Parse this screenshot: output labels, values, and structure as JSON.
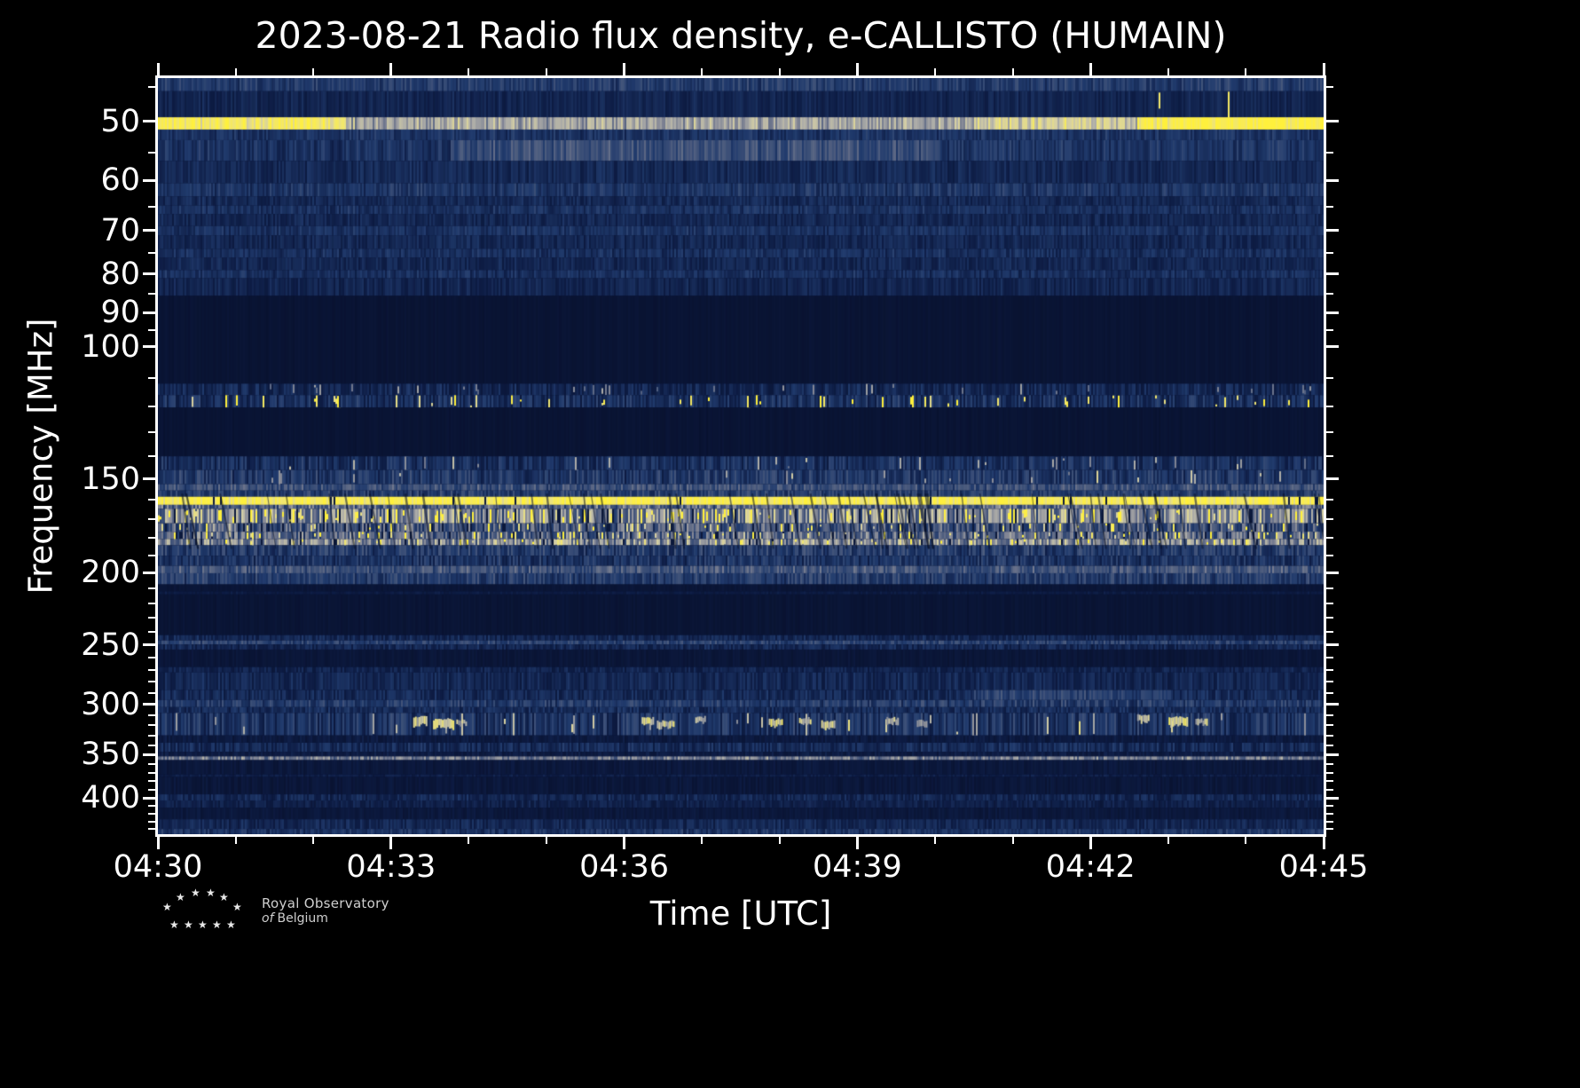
{
  "title": "2023-08-21 Radio flux density, e-CALLISTO (HUMAIN)",
  "xlabel": "Time [UTC]",
  "ylabel": "Frequency [MHz]",
  "date": "2023-08-21",
  "instrument": "e-CALLISTO",
  "station": "HUMAIN",
  "logo": {
    "line1": "Royal Observatory",
    "line2_italic": "of",
    "line2": "Belgium"
  },
  "colors": {
    "background": "#000000",
    "foreground": "#ffffff",
    "bright_rfi": "#ffee3c",
    "quiet_blue": "#0d1c44"
  },
  "chart_data": {
    "type": "heatmap",
    "title": "2023-08-21 Radio flux density, e-CALLISTO (HUMAIN)",
    "xlabel": "Time [UTC]",
    "ylabel": "Frequency [MHz]",
    "x_range_minutes": [
      0,
      15
    ],
    "x_major_ticks": [
      {
        "label": "04:30",
        "min": 0
      },
      {
        "label": "04:33",
        "min": 3
      },
      {
        "label": "04:36",
        "min": 6
      },
      {
        "label": "04:39",
        "min": 9
      },
      {
        "label": "04:42",
        "min": 12
      },
      {
        "label": "04:45",
        "min": 15
      }
    ],
    "x_minor_ticks_min": [
      1,
      2,
      4,
      5,
      7,
      8,
      10,
      11,
      13,
      14
    ],
    "y_scale": "log",
    "y_inverted": "low frequency at top",
    "y_range_mhz": [
      43.8,
      447
    ],
    "y_major_ticks": [
      50,
      60,
      70,
      80,
      90,
      100,
      150,
      200,
      250,
      300,
      350,
      400
    ],
    "y_minor_ticks": [
      45,
      55,
      65,
      75,
      85,
      95,
      110,
      120,
      130,
      140,
      160,
      170,
      180,
      190,
      210,
      220,
      230,
      240,
      260,
      270,
      280,
      290,
      310,
      320,
      330,
      340,
      360,
      370,
      380,
      390,
      410,
      420,
      430,
      440
    ],
    "colormap_stops": [
      [
        0.0,
        [
          7,
          15,
          42
        ]
      ],
      [
        0.15,
        [
          13,
          28,
          68
        ]
      ],
      [
        0.3,
        [
          32,
          58,
          108
        ]
      ],
      [
        0.45,
        [
          82,
          96,
          128
        ]
      ],
      [
        0.55,
        [
          128,
          132,
          148
        ]
      ],
      [
        0.65,
        [
          172,
          172,
          168
        ]
      ],
      [
        0.75,
        [
          212,
          206,
          165
        ]
      ],
      [
        0.85,
        [
          238,
          228,
          120
        ]
      ],
      [
        1.0,
        [
          255,
          240,
          60
        ]
      ]
    ],
    "bands": [
      {
        "f_lo": 43.8,
        "f_hi": 45.6,
        "mean": 0.3,
        "var": 0.08,
        "label": "top edge noise strip"
      },
      {
        "f_lo": 45.6,
        "f_hi": 49.4,
        "mean": 0.19,
        "var": 0.05,
        "speckle_prob": 0.004,
        "speckle_val": 0.8
      },
      {
        "f_lo": 49.4,
        "f_hi": 51.3,
        "mean": 0.8,
        "var": 0.1,
        "label": "bright ~50 MHz carrier",
        "tmods": [
          [
            0,
            0.16,
            1.15
          ],
          [
            0.16,
            0.7,
            0.78
          ],
          [
            0.7,
            0.84,
            0.92
          ],
          [
            0.84,
            1,
            1.22
          ]
        ]
      },
      {
        "f_lo": 51.3,
        "f_hi": 53.0,
        "mean": 0.26,
        "var": 0.07
      },
      {
        "f_lo": 53.0,
        "f_hi": 56.5,
        "mean": 0.3,
        "var": 0.08,
        "tmods": [
          [
            0,
            0.25,
            0.85
          ],
          [
            0.25,
            0.67,
            1.25
          ],
          [
            0.67,
            1,
            0.9
          ]
        ]
      },
      {
        "f_lo": 56.5,
        "f_hi": 60.5,
        "mean": 0.21,
        "var": 0.06
      },
      {
        "f_lo": 60.5,
        "f_hi": 63.0,
        "mean": 0.27,
        "var": 0.08,
        "label": "~62 MHz line"
      },
      {
        "f_lo": 63.0,
        "f_hi": 64.8,
        "mean": 0.21,
        "var": 0.06
      },
      {
        "f_lo": 64.8,
        "f_hi": 66.5,
        "mean": 0.25,
        "var": 0.07
      },
      {
        "f_lo": 66.5,
        "f_hi": 69.0,
        "mean": 0.2,
        "var": 0.06
      },
      {
        "f_lo": 69.0,
        "f_hi": 71.0,
        "mean": 0.25,
        "var": 0.07
      },
      {
        "f_lo": 71.0,
        "f_hi": 74.0,
        "mean": 0.2,
        "var": 0.06
      },
      {
        "f_lo": 74.0,
        "f_hi": 76.0,
        "mean": 0.24,
        "var": 0.07
      },
      {
        "f_lo": 76.0,
        "f_hi": 79.0,
        "mean": 0.2,
        "var": 0.06
      },
      {
        "f_lo": 79.0,
        "f_hi": 81.0,
        "mean": 0.24,
        "var": 0.07
      },
      {
        "f_lo": 81.0,
        "f_hi": 85.5,
        "mean": 0.19,
        "var": 0.06
      },
      {
        "f_lo": 85.5,
        "f_hi": 112.0,
        "mean": 0.055,
        "var": 0.015,
        "label": "quiet / blanked band"
      },
      {
        "f_lo": 112.0,
        "f_hi": 116.0,
        "mean": 0.2,
        "var": 0.09,
        "speckle_prob": 0.04,
        "speckle_val": 0.55
      },
      {
        "f_lo": 116.0,
        "f_hi": 120.5,
        "mean": 0.24,
        "var": 0.11,
        "speckle_prob": 0.08,
        "speckle_val": 0.95,
        "label": "airband speckles ~118 MHz"
      },
      {
        "f_lo": 120.5,
        "f_hi": 140.0,
        "mean": 0.055,
        "var": 0.015
      },
      {
        "f_lo": 140.0,
        "f_hi": 146.0,
        "mean": 0.24,
        "var": 0.1,
        "speckle_prob": 0.03,
        "speckle_val": 0.6
      },
      {
        "f_lo": 146.0,
        "f_hi": 152.5,
        "mean": 0.28,
        "var": 0.11,
        "speckle_prob": 0.03,
        "speckle_val": 0.65
      },
      {
        "f_lo": 152.5,
        "f_hi": 155.5,
        "mean": 0.38,
        "var": 0.1
      },
      {
        "f_lo": 155.5,
        "f_hi": 158.5,
        "mean": 0.3,
        "var": 0.1
      },
      {
        "f_lo": 158.5,
        "f_hi": 162.5,
        "mean": 0.93,
        "var": 0.06,
        "gap_prob": 0.03,
        "label": "saturated bright band ~160 MHz"
      },
      {
        "f_lo": 162.5,
        "f_hi": 164.5,
        "mean": 0.45,
        "var": 0.15
      },
      {
        "f_lo": 164.5,
        "f_hi": 172.0,
        "mean": 0.55,
        "var": 0.22,
        "speckle_prob": 0.18,
        "speckle_val": 0.95,
        "gap_prob": 0.06
      },
      {
        "f_lo": 172.0,
        "f_hi": 176.5,
        "mean": 0.4,
        "var": 0.18,
        "speckle_prob": 0.1,
        "speckle_val": 0.85,
        "gap_prob": 0.05
      },
      {
        "f_lo": 176.5,
        "f_hi": 180.5,
        "mean": 0.45,
        "var": 0.18,
        "speckle_prob": 0.12,
        "speckle_val": 0.9,
        "gap_prob": 0.05
      },
      {
        "f_lo": 180.5,
        "f_hi": 184.0,
        "mean": 0.55,
        "var": 0.18,
        "speckle_prob": 0.1,
        "speckle_val": 0.9,
        "gap_prob": 0.04
      },
      {
        "f_lo": 184.0,
        "f_hi": 190.0,
        "mean": 0.3,
        "var": 0.12
      },
      {
        "f_lo": 190.0,
        "f_hi": 196.0,
        "mean": 0.26,
        "var": 0.1
      },
      {
        "f_lo": 196.0,
        "f_hi": 200.5,
        "mean": 0.4,
        "var": 0.1,
        "label": "gray band ~200 MHz"
      },
      {
        "f_lo": 200.5,
        "f_hi": 207.5,
        "mean": 0.3,
        "var": 0.1
      },
      {
        "f_lo": 207.5,
        "f_hi": 212.0,
        "mean": 0.07,
        "var": 0.02
      },
      {
        "f_lo": 212.0,
        "f_hi": 214.0,
        "mean": 0.13,
        "var": 0.04
      },
      {
        "f_lo": 214.0,
        "f_hi": 242.5,
        "mean": 0.06,
        "var": 0.02
      },
      {
        "f_lo": 242.5,
        "f_hi": 246.5,
        "mean": 0.2,
        "var": 0.08
      },
      {
        "f_lo": 246.5,
        "f_hi": 249.5,
        "mean": 0.33,
        "var": 0.08,
        "label": "line ~248 MHz"
      },
      {
        "f_lo": 249.5,
        "f_hi": 253.5,
        "mean": 0.2,
        "var": 0.08
      },
      {
        "f_lo": 253.5,
        "f_hi": 267.5,
        "mean": 0.08,
        "var": 0.03
      },
      {
        "f_lo": 267.5,
        "f_hi": 272.0,
        "mean": 0.18,
        "var": 0.07
      },
      {
        "f_lo": 272.0,
        "f_hi": 287.0,
        "mean": 0.2,
        "var": 0.07
      },
      {
        "f_lo": 287.0,
        "f_hi": 296.0,
        "mean": 0.21,
        "var": 0.08,
        "tmods": [
          [
            0,
            0.7,
            1
          ],
          [
            0.7,
            0.87,
            1.55
          ],
          [
            0.87,
            1,
            1.05
          ]
        ]
      },
      {
        "f_lo": 296.0,
        "f_hi": 302.5,
        "mean": 0.3,
        "var": 0.1,
        "label": "line ~300 MHz"
      },
      {
        "f_lo": 302.5,
        "f_hi": 308.0,
        "mean": 0.22,
        "var": 0.08
      },
      {
        "f_lo": 308.0,
        "f_hi": 330.0,
        "mean": 0.26,
        "var": 0.12,
        "speckle_prob": 0.04,
        "speckle_val": 0.7,
        "label": "intermittent blobs 310-330 MHz"
      },
      {
        "f_lo": 330.0,
        "f_hi": 337.5,
        "mean": 0.12,
        "var": 0.05
      },
      {
        "f_lo": 337.5,
        "f_hi": 347.0,
        "mean": 0.22,
        "var": 0.09
      },
      {
        "f_lo": 347.0,
        "f_hi": 352.0,
        "mean": 0.13,
        "var": 0.05
      },
      {
        "f_lo": 352.0,
        "f_hi": 356.0,
        "mean": 0.52,
        "var": 0.12,
        "label": "bright line ~355 MHz"
      },
      {
        "f_lo": 356.0,
        "f_hi": 372.0,
        "mean": 0.1,
        "var": 0.04
      },
      {
        "f_lo": 372.0,
        "f_hi": 375.0,
        "mean": 0.15,
        "var": 0.05
      },
      {
        "f_lo": 375.0,
        "f_hi": 395.5,
        "mean": 0.09,
        "var": 0.04
      },
      {
        "f_lo": 395.5,
        "f_hi": 403.0,
        "mean": 0.2,
        "var": 0.08,
        "label": "band ~400 MHz"
      },
      {
        "f_lo": 403.0,
        "f_hi": 412.0,
        "mean": 0.16,
        "var": 0.06
      },
      {
        "f_lo": 412.0,
        "f_hi": 427.0,
        "mean": 0.1,
        "var": 0.04
      },
      {
        "f_lo": 427.0,
        "f_hi": 440.0,
        "mean": 0.2,
        "var": 0.07
      },
      {
        "f_lo": 440.0,
        "f_hi": 447.0,
        "mean": 0.27,
        "var": 0.08,
        "label": "bottom edge noise strip"
      }
    ],
    "blobs": [
      {
        "t": 0.225,
        "f_lo": 312,
        "f_hi": 322,
        "w": 0.012,
        "v": 0.72
      },
      {
        "t": 0.245,
        "f_lo": 314,
        "f_hi": 324,
        "w": 0.018,
        "v": 0.78
      },
      {
        "t": 0.26,
        "f_lo": 315,
        "f_hi": 321,
        "w": 0.008,
        "v": 0.68
      },
      {
        "t": 0.42,
        "f_lo": 313,
        "f_hi": 322,
        "w": 0.01,
        "v": 0.8
      },
      {
        "t": 0.435,
        "f_lo": 316,
        "f_hi": 324,
        "w": 0.014,
        "v": 0.75
      },
      {
        "t": 0.465,
        "f_lo": 312,
        "f_hi": 318,
        "w": 0.008,
        "v": 0.65
      },
      {
        "t": 0.53,
        "f_lo": 314,
        "f_hi": 323,
        "w": 0.012,
        "v": 0.8
      },
      {
        "t": 0.555,
        "f_lo": 313,
        "f_hi": 320,
        "w": 0.01,
        "v": 0.7
      },
      {
        "t": 0.575,
        "f_lo": 316,
        "f_hi": 325,
        "w": 0.012,
        "v": 0.72
      },
      {
        "t": 0.63,
        "f_lo": 313,
        "f_hi": 321,
        "w": 0.01,
        "v": 0.68
      },
      {
        "t": 0.655,
        "f_lo": 315,
        "f_hi": 322,
        "w": 0.008,
        "v": 0.66
      },
      {
        "t": 0.845,
        "f_lo": 310,
        "f_hi": 318,
        "w": 0.01,
        "v": 0.7
      },
      {
        "t": 0.875,
        "f_lo": 312,
        "f_hi": 322,
        "w": 0.016,
        "v": 0.78
      },
      {
        "t": 0.895,
        "f_lo": 314,
        "f_hi": 321,
        "w": 0.01,
        "v": 0.72
      }
    ],
    "dark_streaks": {
      "count": 60,
      "f_lo": 157,
      "f_hi": 186
    }
  }
}
